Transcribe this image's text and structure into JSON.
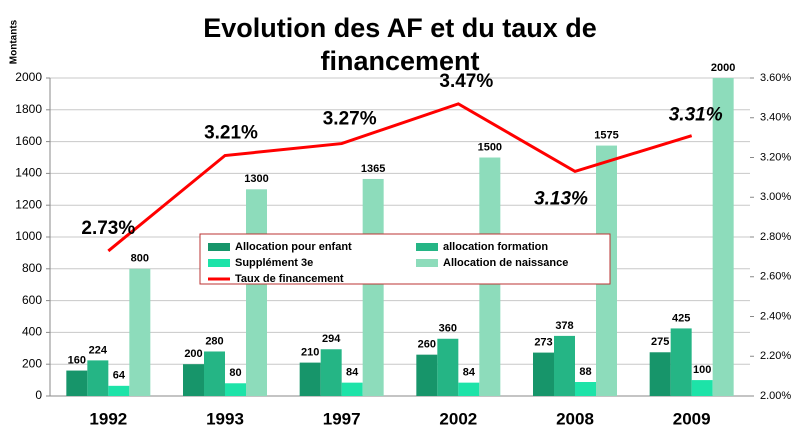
{
  "chart_data": {
    "type": "bar",
    "title": "Evolution des AF et du taux de financement",
    "y_label": "Montants",
    "categories": [
      "1992",
      "1993",
      "1997",
      "2002",
      "2008",
      "2009"
    ],
    "series": [
      {
        "name": "Allocation pour enfant",
        "color": "#17956a",
        "values": [
          160,
          200,
          210,
          260,
          273,
          275
        ]
      },
      {
        "name": "allocation formation",
        "color": "#25b585",
        "values": [
          224,
          280,
          294,
          360,
          378,
          425
        ]
      },
      {
        "name": "Supplément 3e",
        "color": "#1de3a8",
        "values": [
          64,
          80,
          84,
          84,
          88,
          100
        ]
      },
      {
        "name": "Allocation de naissance",
        "color": "#8ddcbb",
        "values": [
          800,
          1300,
          1365,
          1500,
          1575,
          2000
        ]
      },
      {
        "name": "Taux de financement",
        "type": "line",
        "axis": "y2",
        "color": "#ff0000",
        "values": [
          2.73,
          3.21,
          3.27,
          3.47,
          3.13,
          3.31
        ],
        "value_labels": [
          "2.73%",
          "3.21%",
          "3.27%",
          "3.47%",
          "3.13%",
          "3.31%"
        ]
      }
    ],
    "ylim": [
      0,
      2000
    ],
    "yticks": [
      0,
      200,
      400,
      600,
      800,
      1000,
      1200,
      1400,
      1600,
      1800,
      2000
    ],
    "y2lim": [
      2.0,
      3.6
    ],
    "y2ticks": [
      {
        "value": 2.0,
        "label": "2.00%"
      },
      {
        "value": 2.2,
        "label": "2.20%"
      },
      {
        "value": 2.4,
        "label": "2.40%"
      },
      {
        "value": 2.6,
        "label": "2.60%"
      },
      {
        "value": 2.8,
        "label": "2.80%"
      },
      {
        "value": 3.0,
        "label": "3.00%"
      },
      {
        "value": 3.2,
        "label": "3.20%"
      },
      {
        "value": 3.4,
        "label": "3.40%"
      },
      {
        "value": 3.6,
        "label": "3.60%"
      }
    ],
    "grid": true
  }
}
